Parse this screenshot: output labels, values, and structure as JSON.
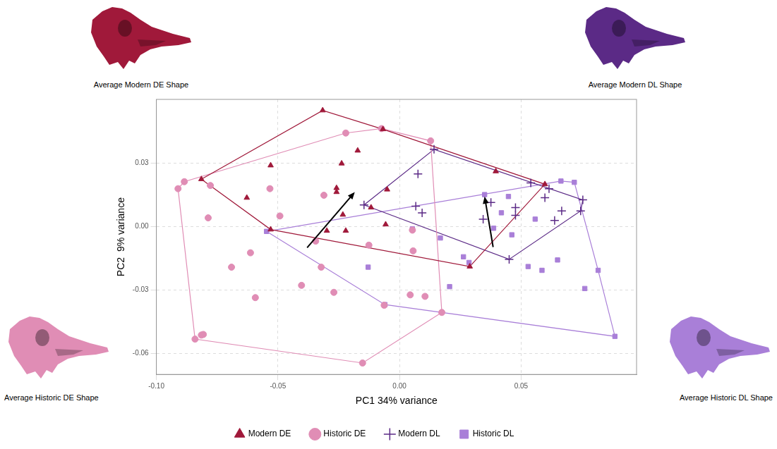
{
  "chart_data": {
    "type": "scatter",
    "x_label": "PC1 34% variance",
    "y_label": "PC2  9% variance",
    "xlim": [
      -0.1,
      0.0975
    ],
    "ylim": [
      -0.07,
      0.06
    ],
    "xticks": [
      {
        "value": -0.1,
        "label": "-0.10"
      },
      -0.05,
      {
        "value": 0,
        "label": "0.00"
      },
      0.05
    ],
    "yticks": [
      -0.06,
      -0.03,
      {
        "value": 0,
        "label": "0.00"
      },
      0.03
    ],
    "grid": true,
    "legend": "bottom",
    "series": [
      {
        "name": "Modern DE",
        "color": "#a0193a",
        "marker": "triangle",
        "x": [
          -0.0316,
          -0.0068,
          -0.0815,
          -0.053,
          -0.0238,
          -0.0172,
          -0.0628,
          -0.0259,
          -0.0259,
          -0.0233,
          -0.0051,
          -0.0117,
          -0.053,
          -0.0299,
          -0.0221,
          -0.0057,
          0.0396,
          0.0598,
          0.0289
        ],
        "y": [
          0.0548,
          0.0459,
          0.0223,
          0.0288,
          0.0297,
          0.0358,
          0.0135,
          0.0181,
          0.0162,
          0.0055,
          0.0174,
          0.0089,
          -0.0015,
          -0.0021,
          -0.0021,
          0.0009,
          0.026,
          0.0199,
          -0.019
        ]
      },
      {
        "name": "Historic DE",
        "color": "#e08db5",
        "marker": "circle",
        "x": [
          -0.0221,
          -0.0074,
          0.0128,
          -0.0885,
          -0.0911,
          -0.0778,
          -0.0533,
          -0.0787,
          -0.0492,
          -0.0311,
          -0.0613,
          -0.0691,
          -0.0345,
          -0.0126,
          -0.0322,
          -0.0403,
          -0.027,
          -0.0593,
          0.0053,
          0.0056,
          0.0044,
          0.0105,
          0.0174,
          -0.0063,
          -0.0807,
          -0.0815,
          -0.0841,
          -0.0152
        ],
        "y": [
          0.0441,
          0.0462,
          0.0404,
          0.0211,
          0.0178,
          0.0193,
          0.0178,
          0.004,
          0.0049,
          0.0147,
          -0.0125,
          -0.0193,
          -0.007,
          -0.0089,
          -0.0193,
          -0.0279,
          -0.0312,
          -0.0337,
          -0.0018,
          -0.0116,
          -0.0324,
          -0.0331,
          -0.0407,
          -0.0373,
          -0.0511,
          -0.0514,
          -0.0533,
          -0.0646
        ]
      },
      {
        "name": "Modern DL",
        "color": "#5b2a86",
        "marker": "plus",
        "x": [
          0.0076,
          0.0142,
          -0.0146,
          0.0067,
          0.0093,
          0.0344,
          0.0477,
          0.0477,
          0.054,
          0.0615,
          0.0598,
          0.0638,
          0.0667,
          0.0754,
          0.0745,
          0.0451,
          0.0376
        ],
        "y": [
          0.0248,
          0.0364,
          0.0101,
          0.0095,
          0.0064,
          0.0034,
          0.0089,
          0.0052,
          0.0205,
          0.0178,
          0.0135,
          0.0028,
          0.0073,
          0.0125,
          0.0073,
          -0.0156,
          0.0113
        ]
      },
      {
        "name": "Historic DL",
        "color": "#a97fd8",
        "marker": "square",
        "x": [
          -0.0547,
          -0.0129,
          -0.006,
          0.0053,
          0.0168,
          0.035,
          0.0263,
          0.0206,
          0.0286,
          0.0387,
          0.0419,
          0.0448,
          0.0462,
          0.0529,
          0.0586,
          0.065,
          0.0558,
          0.0664,
          0.0719,
          0.0817,
          0.0762,
          0.0886
        ],
        "y": [
          -0.0024,
          -0.0193,
          -0.037,
          -0.0012,
          -0.0055,
          0.015,
          -0.0144,
          -0.0285,
          -0.0171,
          -0.0009,
          0.0064,
          0.0141,
          -0.004,
          -0.019,
          -0.0208,
          -0.0159,
          0.0034,
          0.0214,
          0.0208,
          -0.0208,
          -0.0294,
          -0.052
        ]
      }
    ],
    "arrows": [
      {
        "from": [
          -0.038,
          -0.0101
        ],
        "to": [
          -0.0184,
          0.0162
        ]
      },
      {
        "from": [
          0.0385,
          -0.0098
        ],
        "to": [
          0.035,
          0.0141
        ]
      }
    ],
    "images": [
      {
        "label": "Average Modern DE Shape",
        "color": "#a0193a"
      },
      {
        "label": "Average Modern DL Shape",
        "color": "#5b2a86"
      },
      {
        "label": "Average Historic DE Shape",
        "color": "#e08db5"
      },
      {
        "label": "Average Historic DL Shape",
        "color": "#a97fd8"
      }
    ]
  }
}
